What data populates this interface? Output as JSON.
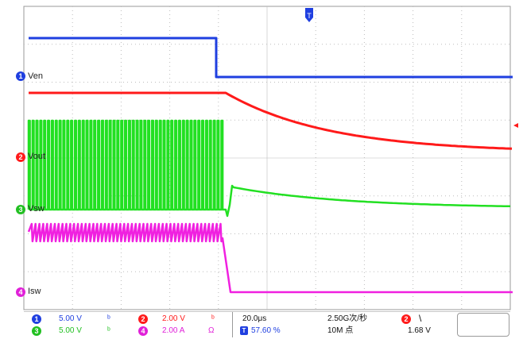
{
  "traces": [
    {
      "label": "Ven",
      "channel": "1",
      "color": "#1f3fe0"
    },
    {
      "label": "Vout",
      "channel": "2",
      "color": "#ff1a1a"
    },
    {
      "label": "Vsw",
      "channel": "3",
      "color": "#22e022"
    },
    {
      "label": "Isw",
      "channel": "4",
      "color": "#f020e0"
    }
  ],
  "status": {
    "ch1": {
      "num": "1",
      "scale": "5.00 V"
    },
    "ch2": {
      "num": "2",
      "scale": "2.00 V"
    },
    "ch3": {
      "num": "3",
      "scale": "5.00 V"
    },
    "ch4": {
      "num": "4",
      "scale": "2.00 A"
    },
    "timebase": "20.0μs",
    "position": "57.60 %",
    "sample_rate": "2.50G次/秒",
    "record_length": "10M 点",
    "trigger_channel": "2",
    "trigger_slope": "\\",
    "trigger_level": "1.68 V"
  }
}
